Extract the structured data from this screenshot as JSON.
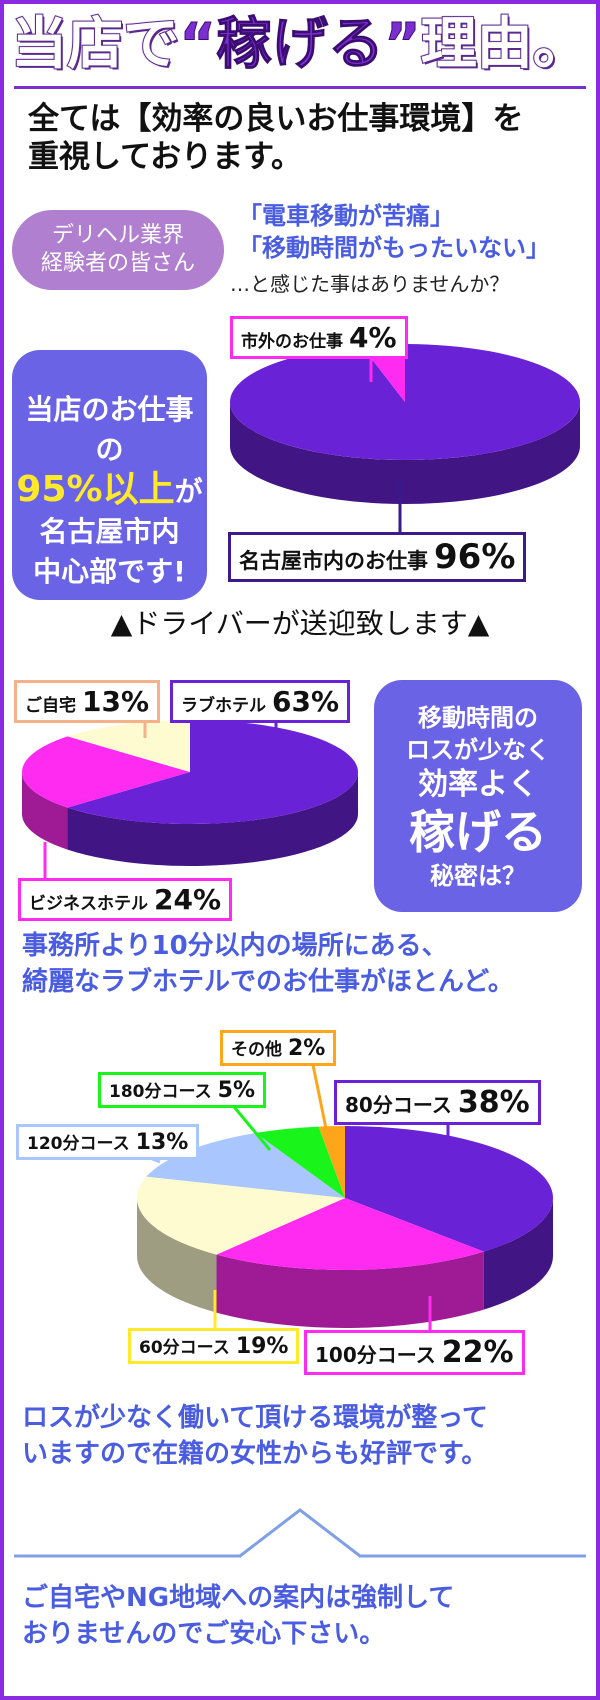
{
  "title": {
    "part_a": "当店で",
    "part_b": "“稼げる”",
    "part_c": "理由。"
  },
  "lead": {
    "line1": "全ては【効率の良いお仕事環境】を",
    "line2": "重視しております。"
  },
  "pill": {
    "line1": "デリヘル業界",
    "line2": "経験者の皆さん"
  },
  "quote": {
    "line1": "「電車移動が苦痛」",
    "line2": "「移動時間がもったいない」"
  },
  "question": "…と感じた事はありませんか？",
  "callout1": {
    "line1": "当店のお仕事の",
    "highlight": "95%以上",
    "particle": "が",
    "line3": "名古屋市内",
    "line4": "中心部です!"
  },
  "driver_text": "▲ドライバーが送迎致します▲",
  "callout2": {
    "line1": "移動時間の",
    "line2": "ロスが少なく",
    "line3": "効率よく",
    "big": "稼げる",
    "line5": "秘密は？"
  },
  "middle_text": {
    "line1": "事務所より10分以内の場所にある、",
    "line2": "綺麗なラブホテルでのお仕事がほとんど。"
  },
  "bottom_text1": {
    "line1": "ロスが少なく働いて頂ける環境が整って",
    "line2": "いますので在籍の女性からも好評です。"
  },
  "bottom_text2": {
    "line1": "ご自宅やNG地域への案内は強制して",
    "line2": "おりませんのでご安心下さい。"
  },
  "chart_data": [
    {
      "type": "pie",
      "slices": [
        {
          "name": "名古屋市内のお仕事",
          "value": 96,
          "label": "96%",
          "color": "#6a22d6"
        },
        {
          "name": "市外のお仕事",
          "value": 4,
          "label": "4%",
          "color": "#ff2bf0"
        }
      ]
    },
    {
      "type": "pie",
      "slices": [
        {
          "name": "ラブホテル",
          "value": 63,
          "label": "63%",
          "color": "#6a22d6"
        },
        {
          "name": "ビジネスホテル",
          "value": 24,
          "label": "24%",
          "color": "#ff2bf0"
        },
        {
          "name": "ご自宅",
          "value": 13,
          "label": "13%",
          "color": "#fffbd0"
        }
      ]
    },
    {
      "type": "pie",
      "slices": [
        {
          "name": "80分コース",
          "value": 38,
          "label": "38%",
          "color": "#6a22d6"
        },
        {
          "name": "100分コース",
          "value": 22,
          "label": "22%",
          "color": "#ff2bf0"
        },
        {
          "name": "60分コース",
          "value": 19,
          "label": "19%",
          "color": "#fffbd0"
        },
        {
          "name": "120分コース",
          "value": 13,
          "label": "13%",
          "color": "#a9c6ff"
        },
        {
          "name": "180分コース",
          "value": 5,
          "label": "5%",
          "color": "#19f51a"
        },
        {
          "name": "その他",
          "value": 2,
          "label": "2%",
          "color": "#ffa51a"
        }
      ]
    }
  ]
}
